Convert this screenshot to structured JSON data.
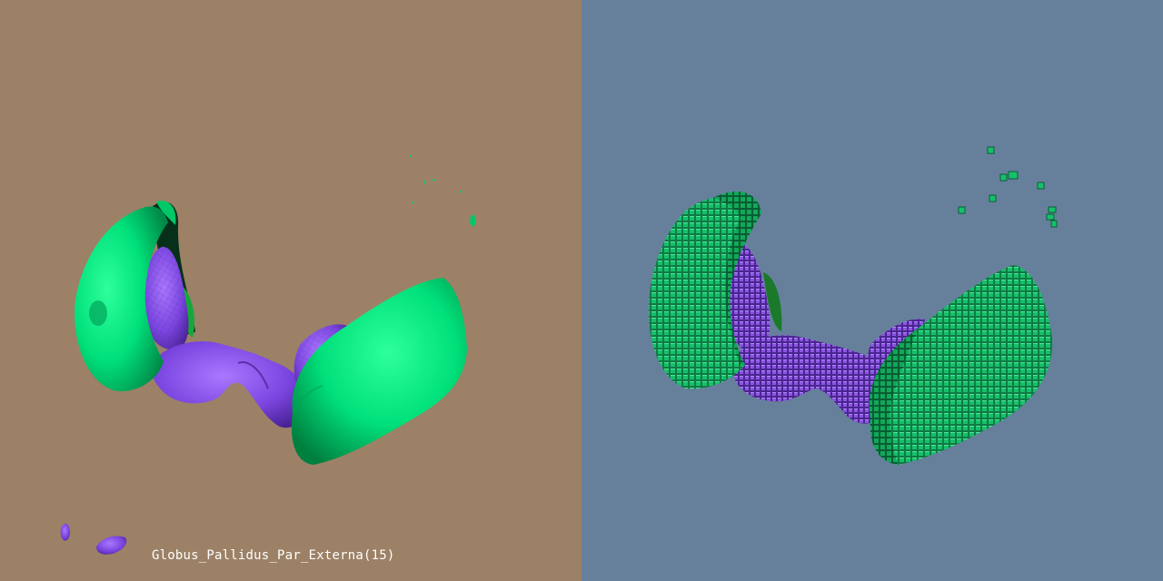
{
  "viewer": {
    "structure_label": "Globus_Pallidus_Par_Externa(15)",
    "left_panel": {
      "render_mode": "smooth-surface",
      "background": "#9c8166"
    },
    "right_panel": {
      "render_mode": "voxel-blocks",
      "background": "#66809c"
    }
  },
  "colors": {
    "putamen_green": "#00e07a",
    "putamen_green_dark": "#00884a",
    "globus_pallidus_purple": "#8a55e0",
    "globus_pallidus_purple_dark": "#5a30a8",
    "inner_green": "#0b7a2a"
  },
  "icons": {
    "left_view": "brain-structure-surface-render",
    "right_view": "brain-structure-voxel-render"
  }
}
